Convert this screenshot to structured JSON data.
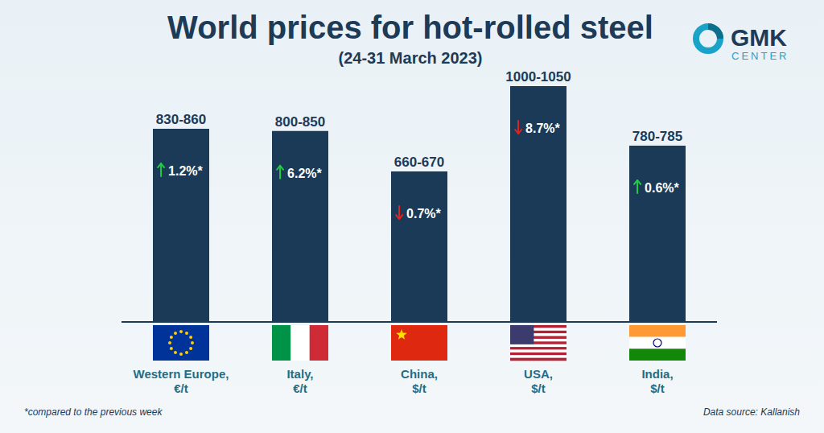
{
  "chart_data": {
    "type": "bar",
    "title": "World prices for hot-rolled steel",
    "subtitle": "(24-31 March 2023)",
    "categories": [
      "Western Europe, €/t",
      "Italy, €/t",
      "China, $/t",
      "USA, $/t",
      "India, $/t"
    ],
    "values": [
      860,
      850,
      670,
      1050,
      785
    ],
    "value_labels": [
      "830-860",
      "800-850",
      "660-670",
      "1000-1050",
      "780-785"
    ],
    "changes": [
      1.2,
      6.2,
      -0.7,
      -8.7,
      0.6
    ],
    "change_labels": [
      "1.2%*",
      "6.2%*",
      "0.7%*",
      "8.7%*",
      "0.6%*"
    ],
    "color": "#1b3a57",
    "ylim": [
      0,
      1050
    ],
    "data_labels": true,
    "tick_labels": "x",
    "footnote": "*compared to the previous week",
    "source": "Data source: Kallanish",
    "logo": [
      "GMK",
      "CENTER"
    ]
  }
}
